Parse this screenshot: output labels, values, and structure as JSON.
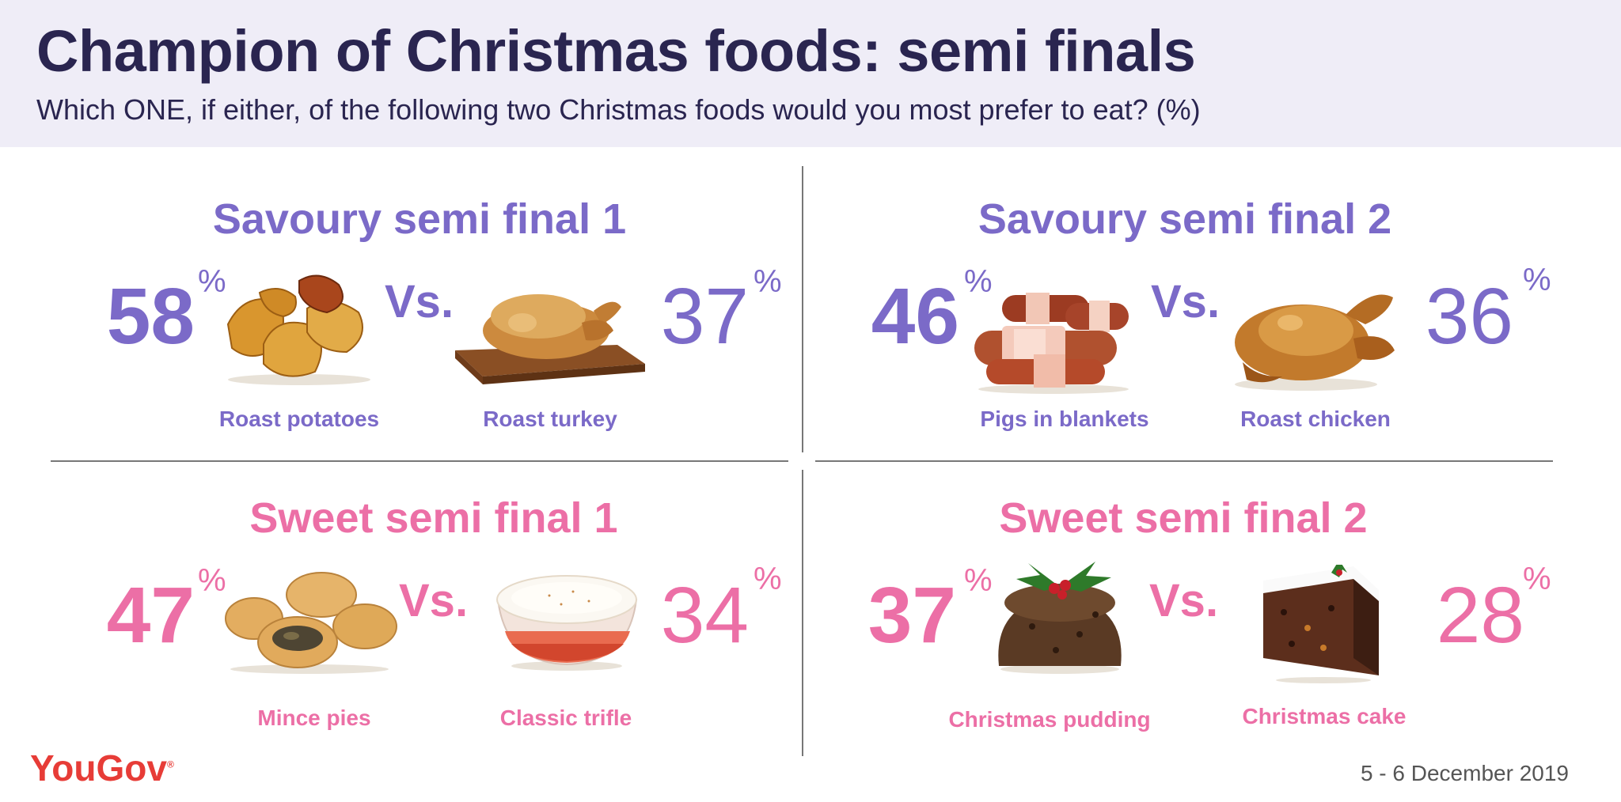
{
  "header": {
    "title": "Champion of Christmas foods: semi finals",
    "subtitle": "Which ONE, if either, of the following two Christmas foods would you most prefer to eat? (%)"
  },
  "colors": {
    "savoury": "#7b6ac8",
    "sweet": "#ec6fa6",
    "header_bg": "#efedf7",
    "title": "#2a2550",
    "brand": "#e73c37"
  },
  "percent_sign": "%",
  "vs_label": "Vs.",
  "footer": {
    "brand": "YouGov",
    "registered": "®",
    "date": "5 - 6 December 2019"
  },
  "chart_data": [
    {
      "type": "table",
      "title": "Savoury semi final 1",
      "theme": "savoury",
      "categories": [
        "Roast potatoes",
        "Roast turkey"
      ],
      "values": [
        58,
        37
      ],
      "icons": [
        "roast-potatoes-icon",
        "roast-turkey-icon"
      ]
    },
    {
      "type": "table",
      "title": "Savoury semi final 2",
      "theme": "savoury",
      "categories": [
        "Pigs in blankets",
        "Roast chicken"
      ],
      "values": [
        46,
        36
      ],
      "icons": [
        "pigs-in-blankets-icon",
        "roast-chicken-icon"
      ]
    },
    {
      "type": "table",
      "title": "Sweet semi final 1",
      "theme": "sweet",
      "categories": [
        "Mince pies",
        "Classic trifle"
      ],
      "values": [
        47,
        34
      ],
      "icons": [
        "mince-pies-icon",
        "classic-trifle-icon"
      ]
    },
    {
      "type": "table",
      "title": "Sweet semi final 2",
      "theme": "sweet",
      "categories": [
        "Christmas pudding",
        "Christmas cake"
      ],
      "values": [
        37,
        28
      ],
      "icons": [
        "christmas-pudding-icon",
        "christmas-cake-icon"
      ]
    }
  ]
}
